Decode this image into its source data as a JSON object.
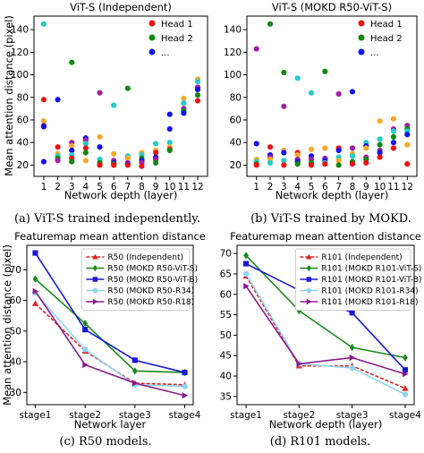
{
  "chart_data": [
    {
      "type": "scatter",
      "title": "ViT-S (Independent)",
      "xlabel": "Network depth (layer)",
      "ylabel": "Mean attention distance (pixel)",
      "xlim": [
        0.3,
        12.7
      ],
      "ylim": [
        10,
        152
      ],
      "x_ticks": [
        1,
        2,
        3,
        4,
        5,
        6,
        7,
        8,
        9,
        10,
        11,
        12
      ],
      "y_ticks": [
        20,
        40,
        60,
        80,
        100,
        120,
        140
      ],
      "legend": {
        "position": "top-right",
        "entries": [
          {
            "label": "Head 1",
            "color": "#ee1111"
          },
          {
            "label": "Head 2",
            "color": "#118811"
          },
          {
            "label": "...",
            "color": "#1111ee"
          }
        ]
      },
      "colors": [
        "#ee1111",
        "#118811",
        "#1111ee",
        "#f9a825",
        "#a020a0",
        "#22cccc"
      ],
      "points": [
        [
          1,
          78,
          0
        ],
        [
          1,
          145,
          5
        ],
        [
          1,
          59,
          3
        ],
        [
          1,
          55,
          4
        ],
        [
          1,
          54,
          2
        ],
        [
          1,
          23,
          2
        ],
        [
          2,
          78,
          2
        ],
        [
          2,
          36,
          0
        ],
        [
          2,
          30,
          3
        ],
        [
          2,
          28,
          5
        ],
        [
          2,
          26,
          1
        ],
        [
          2,
          24,
          4
        ],
        [
          3,
          111,
          1
        ],
        [
          3,
          40,
          4
        ],
        [
          3,
          37,
          3
        ],
        [
          3,
          33,
          2
        ],
        [
          3,
          29,
          5
        ],
        [
          3,
          26,
          0
        ],
        [
          3,
          23,
          1
        ],
        [
          4,
          44,
          2
        ],
        [
          4,
          42,
          4
        ],
        [
          4,
          39,
          5
        ],
        [
          4,
          35,
          0
        ],
        [
          4,
          31,
          1
        ],
        [
          4,
          24,
          3
        ],
        [
          5,
          84,
          4
        ],
        [
          5,
          45,
          3
        ],
        [
          5,
          36,
          2
        ],
        [
          5,
          25,
          5
        ],
        [
          5,
          22,
          1
        ],
        [
          5,
          20,
          0
        ],
        [
          6,
          73,
          5
        ],
        [
          6,
          30,
          3
        ],
        [
          6,
          24,
          4
        ],
        [
          6,
          22,
          2
        ],
        [
          6,
          21,
          1
        ],
        [
          6,
          20,
          0
        ],
        [
          7,
          88,
          1
        ],
        [
          7,
          28,
          5
        ],
        [
          7,
          26,
          3
        ],
        [
          7,
          22,
          4
        ],
        [
          7,
          21,
          2
        ],
        [
          7,
          20,
          0
        ],
        [
          8,
          31,
          3
        ],
        [
          8,
          29,
          5
        ],
        [
          8,
          26,
          1
        ],
        [
          8,
          24,
          2
        ],
        [
          8,
          22,
          4
        ],
        [
          8,
          19,
          0
        ],
        [
          9,
          39,
          5
        ],
        [
          9,
          33,
          3
        ],
        [
          9,
          31,
          0
        ],
        [
          9,
          27,
          2
        ],
        [
          9,
          25,
          4
        ],
        [
          9,
          22,
          1
        ],
        [
          10,
          65,
          2
        ],
        [
          10,
          52,
          2
        ],
        [
          10,
          40,
          5
        ],
        [
          10,
          36,
          3
        ],
        [
          10,
          34,
          0
        ],
        [
          10,
          33,
          1
        ],
        [
          11,
          79,
          3
        ],
        [
          11,
          75,
          5
        ],
        [
          11,
          70,
          4
        ],
        [
          11,
          68,
          1
        ],
        [
          11,
          66,
          2
        ],
        [
          12,
          96,
          3
        ],
        [
          12,
          94,
          5
        ],
        [
          12,
          89,
          4
        ],
        [
          12,
          87,
          2
        ],
        [
          12,
          82,
          1
        ],
        [
          12,
          77,
          0
        ]
      ],
      "caption": "(a) ViT-S trained independently."
    },
    {
      "type": "scatter",
      "title": "ViT-S (MOKD R50-ViT-S)",
      "xlabel": "Network depth (layer)",
      "ylabel": "",
      "xlim": [
        0.3,
        12.7
      ],
      "ylim": [
        10,
        152
      ],
      "x_ticks": [
        1,
        2,
        3,
        4,
        5,
        6,
        7,
        8,
        9,
        10,
        11,
        12
      ],
      "y_ticks": [
        20,
        40,
        60,
        80,
        100,
        120,
        140
      ],
      "legend": {
        "position": "top-right",
        "entries": [
          {
            "label": "Head 1",
            "color": "#ee1111"
          },
          {
            "label": "Head 2",
            "color": "#118811"
          },
          {
            "label": "...",
            "color": "#1111ee"
          }
        ]
      },
      "colors": [
        "#ee1111",
        "#118811",
        "#1111ee",
        "#f9a825",
        "#a020a0",
        "#22cccc"
      ],
      "points": [
        [
          1,
          123,
          4
        ],
        [
          1,
          39,
          2
        ],
        [
          1,
          25,
          3
        ],
        [
          1,
          23,
          5
        ],
        [
          1,
          21,
          1
        ],
        [
          1,
          20,
          0
        ],
        [
          2,
          145,
          1
        ],
        [
          2,
          36,
          0
        ],
        [
          2,
          29,
          2
        ],
        [
          2,
          27,
          4
        ],
        [
          2,
          25,
          3
        ],
        [
          2,
          22,
          5
        ],
        [
          3,
          102,
          1
        ],
        [
          3,
          72,
          4
        ],
        [
          3,
          33,
          3
        ],
        [
          3,
          31,
          2
        ],
        [
          3,
          24,
          5
        ],
        [
          3,
          20,
          0
        ],
        [
          4,
          97,
          5
        ],
        [
          4,
          31,
          0
        ],
        [
          4,
          29,
          3
        ],
        [
          4,
          25,
          4
        ],
        [
          4,
          23,
          2
        ],
        [
          4,
          21,
          1
        ],
        [
          5,
          84,
          5
        ],
        [
          5,
          34,
          3
        ],
        [
          5,
          28,
          2
        ],
        [
          5,
          25,
          4
        ],
        [
          5,
          22,
          1
        ],
        [
          5,
          20,
          0
        ],
        [
          6,
          103,
          1
        ],
        [
          6,
          35,
          3
        ],
        [
          6,
          26,
          4
        ],
        [
          6,
          24,
          2
        ],
        [
          6,
          22,
          5
        ],
        [
          6,
          21,
          0
        ],
        [
          7,
          83,
          4
        ],
        [
          7,
          35,
          0
        ],
        [
          7,
          33,
          2
        ],
        [
          7,
          27,
          5
        ],
        [
          7,
          24,
          3
        ],
        [
          7,
          20,
          1
        ],
        [
          8,
          85,
          2
        ],
        [
          8,
          35,
          4
        ],
        [
          8,
          30,
          3
        ],
        [
          8,
          28,
          5
        ],
        [
          8,
          23,
          1
        ],
        [
          8,
          21,
          0
        ],
        [
          9,
          40,
          5
        ],
        [
          9,
          37,
          2
        ],
        [
          9,
          35,
          3
        ],
        [
          9,
          27,
          4
        ],
        [
          9,
          25,
          1
        ],
        [
          9,
          22,
          0
        ],
        [
          10,
          59,
          3
        ],
        [
          10,
          43,
          5
        ],
        [
          10,
          38,
          1
        ],
        [
          10,
          33,
          4
        ],
        [
          10,
          31,
          2
        ],
        [
          10,
          27,
          0
        ],
        [
          11,
          61,
          3
        ],
        [
          11,
          52,
          4
        ],
        [
          11,
          50,
          5
        ],
        [
          11,
          45,
          1
        ],
        [
          11,
          40,
          2
        ],
        [
          11,
          35,
          0
        ],
        [
          12,
          55,
          4
        ],
        [
          12,
          52,
          1
        ],
        [
          12,
          50,
          5
        ],
        [
          12,
          47,
          2
        ],
        [
          12,
          38,
          3
        ],
        [
          12,
          21,
          0
        ]
      ],
      "caption": "(b) ViT-S trained by MOKD."
    },
    {
      "type": "line",
      "title": "Featuremap mean attention distance",
      "xlabel": "Network layer",
      "ylabel": "Mean attention distance (pixel)",
      "categories": [
        "stage1",
        "stage2",
        "stage3",
        "stage4"
      ],
      "ylim": [
        26,
        78
      ],
      "y_ticks": [
        30,
        40,
        50,
        60,
        70
      ],
      "legend": {
        "position": "top-right"
      },
      "series": [
        {
          "name": "R50 (Independent)",
          "color": "#e02020",
          "marker": "triangle",
          "dashed": true,
          "values": [
            59,
            43.5,
            33,
            32.5
          ]
        },
        {
          "name": "R50 (MOKD R50-ViT-S)",
          "color": "#1b8a1b",
          "marker": "diamond",
          "dashed": false,
          "values": [
            67,
            52.5,
            37,
            36.5
          ]
        },
        {
          "name": "R50 (MOKD R50-ViT-B)",
          "color": "#1818d8",
          "marker": "square",
          "dashed": false,
          "values": [
            75.5,
            50.5,
            40.5,
            36.5
          ]
        },
        {
          "name": "R50 (MOKD R50-R34)",
          "color": "#8fd4f0",
          "marker": "circle",
          "dashed": false,
          "values": [
            62.5,
            44,
            32.5,
            32
          ]
        },
        {
          "name": "R50 (MOKD R50-R18)",
          "color": "#8a1a8a",
          "marker": "triangle-right",
          "dashed": false,
          "values": [
            63,
            39,
            33,
            29
          ]
        }
      ],
      "caption": "(c) R50 models."
    },
    {
      "type": "line",
      "title": "Featuremap mean attention distance",
      "xlabel": "Network depth (layer)",
      "ylabel": "",
      "categories": [
        "stage1",
        "stage2",
        "stage3",
        "stage4"
      ],
      "ylim": [
        33,
        72
      ],
      "y_ticks": [
        35,
        40,
        45,
        50,
        55,
        60,
        65,
        70
      ],
      "legend": {
        "position": "top-right"
      },
      "series": [
        {
          "name": "R101 (Independent)",
          "color": "#e02020",
          "marker": "triangle",
          "dashed": true,
          "values": [
            64.5,
            42.5,
            42.5,
            37
          ]
        },
        {
          "name": "R101 (MOKD R101-ViT-S)",
          "color": "#1b8a1b",
          "marker": "diamond",
          "dashed": false,
          "values": [
            69.5,
            56,
            47,
            44.5
          ]
        },
        {
          "name": "R101 (MOKD R101-ViT-B)",
          "color": "#1818d8",
          "marker": "square",
          "dashed": false,
          "values": [
            67.5,
            61,
            55.5,
            41.5
          ]
        },
        {
          "name": "R101 (MOKD R101-R34)",
          "color": "#8fd4f0",
          "marker": "circle",
          "dashed": false,
          "values": [
            65,
            43,
            42,
            35.5
          ]
        },
        {
          "name": "R101 (MOKD R101-R18)",
          "color": "#8a1a8a",
          "marker": "triangle-right",
          "dashed": false,
          "values": [
            62,
            43,
            44.5,
            40.5
          ]
        }
      ],
      "caption": "(d) R101 models."
    }
  ]
}
